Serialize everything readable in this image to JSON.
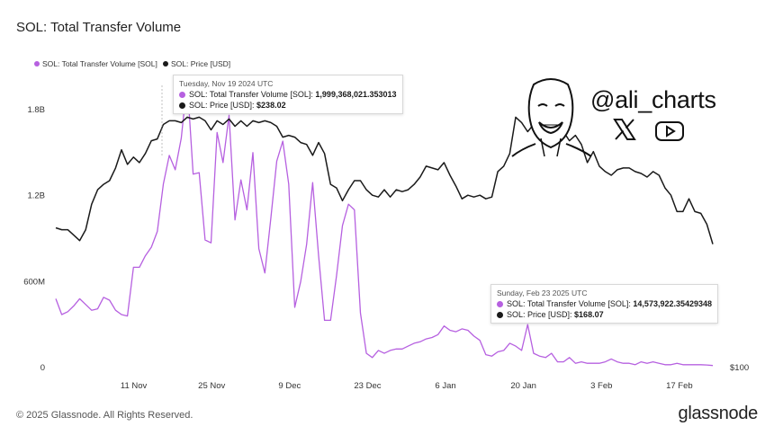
{
  "page": {
    "title": "SOL: Total Transfer Volume"
  },
  "legend": [
    {
      "label": "SOL: Total Transfer Volume [SOL]",
      "color": "#b660e0"
    },
    {
      "label": "SOL: Price [USD]",
      "color": "#1a1a1a"
    }
  ],
  "tooltips": [
    {
      "date": "Tuesday, Nov 19 2024 UTC",
      "volume_label": "SOL: Total Transfer Volume [SOL]:",
      "volume_value": "1,999,368,021.353013",
      "price_label": "SOL: Price [USD]:",
      "price_value": "$238.02"
    },
    {
      "date": "Sunday, Feb 23 2025 UTC",
      "volume_label": "SOL: Total Transfer Volume [SOL]:",
      "volume_value": "14,573,922.35429348",
      "price_label": "SOL: Price [USD]:",
      "price_value": "$168.07"
    }
  ],
  "watermark": {
    "handle": "@ali_charts",
    "icons": [
      "cartoon-face-icon",
      "x-logo-icon",
      "youtube-icon"
    ]
  },
  "footer": {
    "copyright": "© 2025 Glassnode. All Rights Reserved.",
    "brand": "glassnode"
  },
  "chart_data": {
    "type": "line",
    "title": "SOL: Total Transfer Volume",
    "x_start": "2024-10-28",
    "x_end": "2025-02-23",
    "x_ticks": [
      "11 Nov",
      "25 Nov",
      "9 Dec",
      "23 Dec",
      "6 Jan",
      "20 Jan",
      "3 Feb",
      "17 Feb"
    ],
    "y_left": {
      "ticks": [
        "0",
        "600M",
        "1.2B",
        "1.8B"
      ],
      "tick_values": [
        0,
        600000000,
        1200000000,
        1800000000
      ],
      "range": [
        0,
        2000000000
      ]
    },
    "y_right": {
      "ticks": [
        "$100"
      ],
      "tick_values": [
        100
      ]
    },
    "legend_position": "top-left",
    "grid": false,
    "series": [
      {
        "name": "SOL: Total Transfer Volume [SOL]",
        "axis": "left",
        "color": "#b660e0",
        "values": [
          480000000,
          370000000,
          390000000,
          430000000,
          480000000,
          440000000,
          400000000,
          410000000,
          490000000,
          470000000,
          400000000,
          370000000,
          360000000,
          700000000,
          700000000,
          780000000,
          840000000,
          950000000,
          1280000000,
          1480000000,
          1380000000,
          1600000000,
          1999368021,
          1350000000,
          1360000000,
          890000000,
          870000000,
          1640000000,
          1430000000,
          1760000000,
          1030000000,
          1310000000,
          1100000000,
          1500000000,
          830000000,
          660000000,
          1040000000,
          1440000000,
          1580000000,
          1280000000,
          420000000,
          600000000,
          860000000,
          1290000000,
          780000000,
          330000000,
          330000000,
          640000000,
          990000000,
          1140000000,
          1100000000,
          380000000,
          100000000,
          70000000,
          120000000,
          100000000,
          120000000,
          130000000,
          130000000,
          150000000,
          170000000,
          180000000,
          200000000,
          210000000,
          230000000,
          290000000,
          260000000,
          250000000,
          270000000,
          260000000,
          220000000,
          190000000,
          90000000,
          80000000,
          110000000,
          120000000,
          170000000,
          150000000,
          120000000,
          300000000,
          100000000,
          80000000,
          70000000,
          100000000,
          40000000,
          40000000,
          70000000,
          30000000,
          40000000,
          30000000,
          30000000,
          30000000,
          40000000,
          60000000,
          40000000,
          30000000,
          30000000,
          20000000,
          40000000,
          30000000,
          40000000,
          30000000,
          20000000,
          20000000,
          30000000,
          20000000,
          20000000,
          20000000,
          20000000,
          18000000,
          14573922
        ]
      },
      {
        "name": "SOL: Price [USD]",
        "axis": "right",
        "color": "#1a1a1a",
        "values": [
          177,
          176,
          176,
          173,
          170,
          176,
          190,
          198,
          201,
          203,
          210,
          220,
          212,
          216,
          213,
          218,
          225,
          226,
          234,
          236,
          236,
          235,
          238,
          237,
          238,
          236,
          231,
          236,
          234,
          237,
          233,
          236,
          233,
          236,
          235,
          236,
          235,
          233,
          227,
          228,
          227,
          224,
          223,
          217,
          224,
          218,
          201,
          199,
          192,
          198,
          203,
          203,
          198,
          195,
          194,
          198,
          194,
          198,
          197,
          198,
          201,
          205,
          211,
          210,
          209,
          213,
          206,
          200,
          193,
          195,
          194,
          195,
          193,
          194,
          208,
          211,
          218,
          238,
          235,
          230,
          234,
          238,
          236,
          238,
          237,
          230,
          225,
          228,
          223,
          213,
          219,
          211,
          208,
          206,
          209,
          210,
          210,
          208,
          207,
          205,
          208,
          206,
          199,
          195,
          186,
          186,
          193,
          186,
          185,
          179,
          168.07
        ],
        "right_axis_range": [
          100,
          258
        ]
      }
    ],
    "annotations": [
      {
        "date": "Tuesday, Nov 19 2024 UTC",
        "volume": 1999368021.353013,
        "price": 238.02
      },
      {
        "date": "Sunday, Feb 23 2025 UTC",
        "volume": 14573922.35429348,
        "price": 168.07
      }
    ]
  }
}
